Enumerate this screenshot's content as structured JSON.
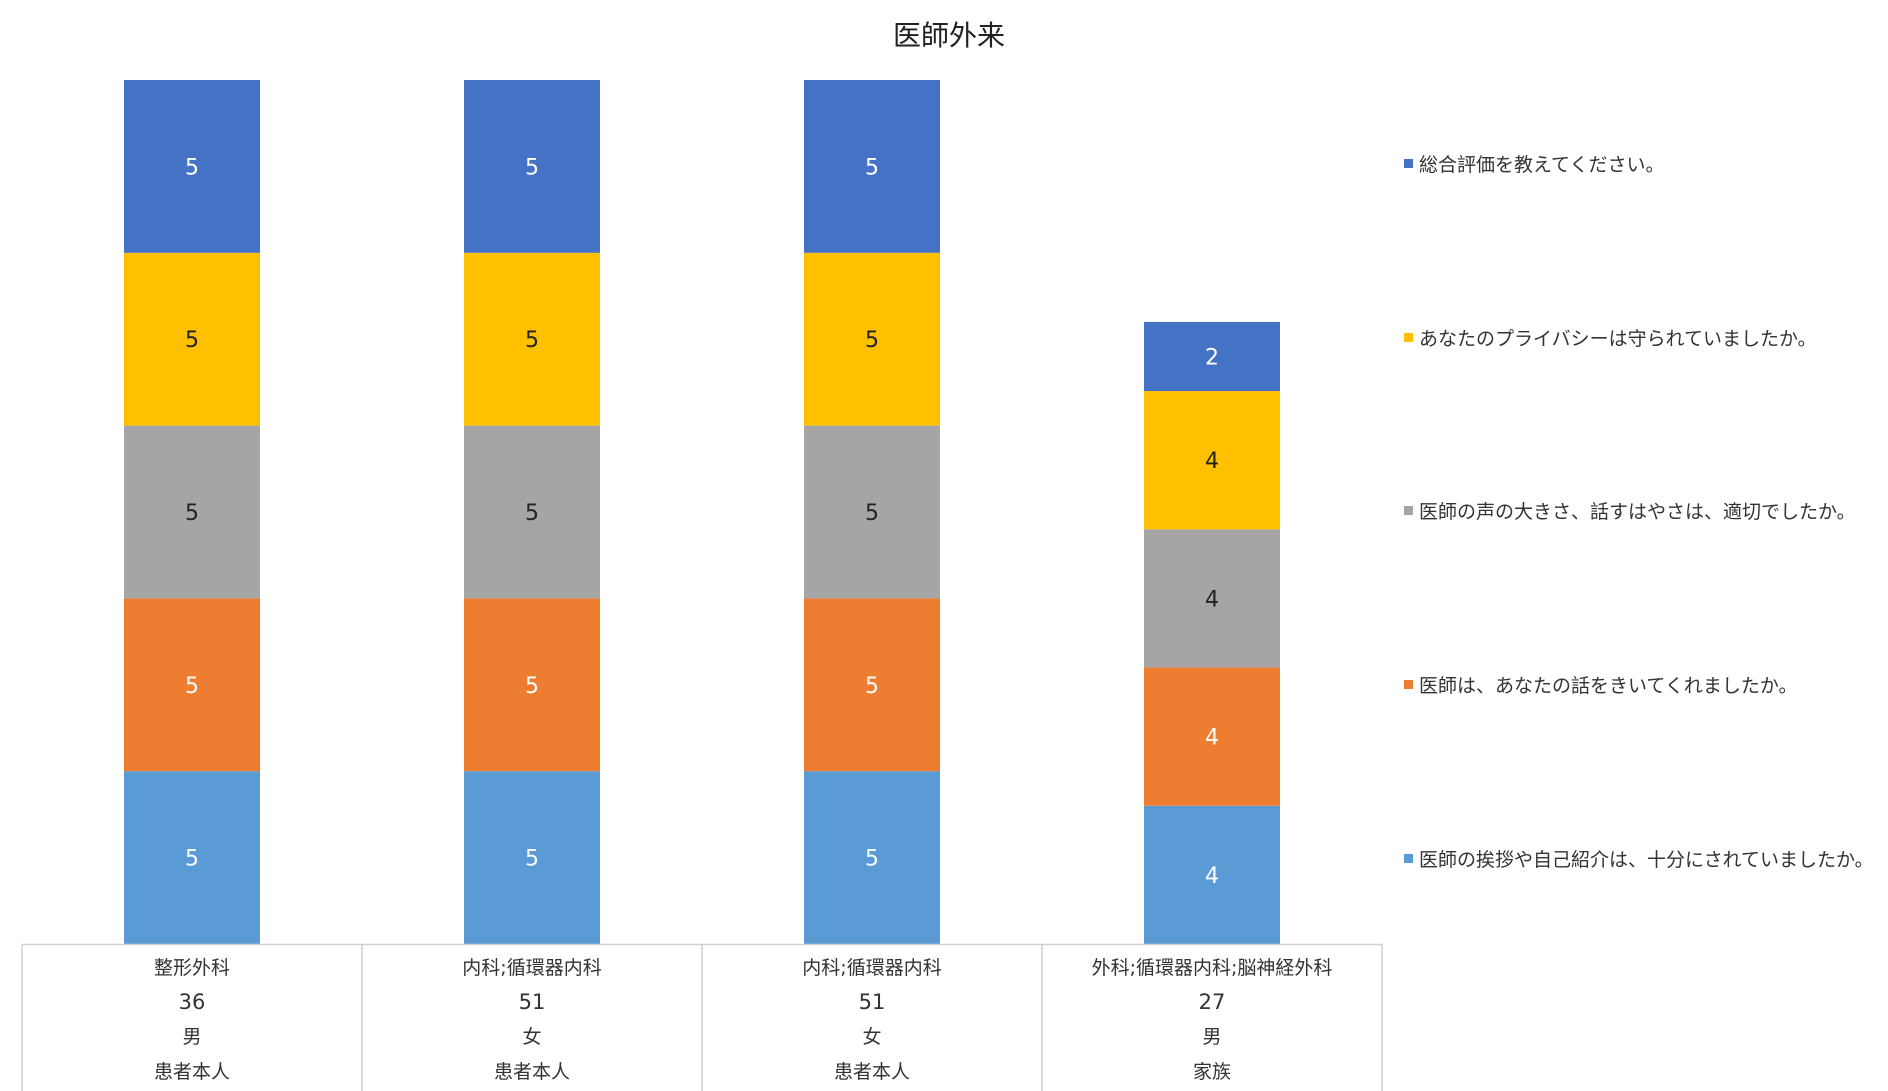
{
  "chart_data": {
    "type": "bar",
    "stacked": true,
    "title": "医師外来",
    "categories": [
      [
        "整形外科",
        "36",
        "男",
        "患者本人"
      ],
      [
        "内科;循環器内科",
        "51",
        "女",
        "患者本人"
      ],
      [
        "内科;循環器内科",
        "51",
        "女",
        "患者本人"
      ],
      [
        "外科;循環器内科;脳神経外科",
        "27",
        "男",
        "家族"
      ]
    ],
    "series": [
      {
        "name": "医師の挨拶や自己紹介は、十分にされていましたか。",
        "color": "#5B9BD5",
        "label_color": "#ffffff",
        "values": [
          5,
          5,
          5,
          4
        ]
      },
      {
        "name": "医師は、あなたの話をきいてくれましたか。",
        "color": "#ED7D31",
        "label_color": "#ffffff",
        "values": [
          5,
          5,
          5,
          4
        ]
      },
      {
        "name": "医師の声の大きさ、話すはやさは、適切でしたか。",
        "color": "#A5A5A5",
        "label_color": "#222222",
        "values": [
          5,
          5,
          5,
          4
        ]
      },
      {
        "name": "あなたのプライバシーは守られていましたか。",
        "color": "#FFC000",
        "label_color": "#222222",
        "values": [
          5,
          5,
          5,
          4
        ]
      },
      {
        "name": "総合評価を教えてください。",
        "color": "#4472C4",
        "label_color": "#ffffff",
        "values": [
          5,
          5,
          5,
          2
        ]
      }
    ],
    "ylim": [
      0,
      25
    ],
    "legend_position": "right",
    "grid": false
  }
}
